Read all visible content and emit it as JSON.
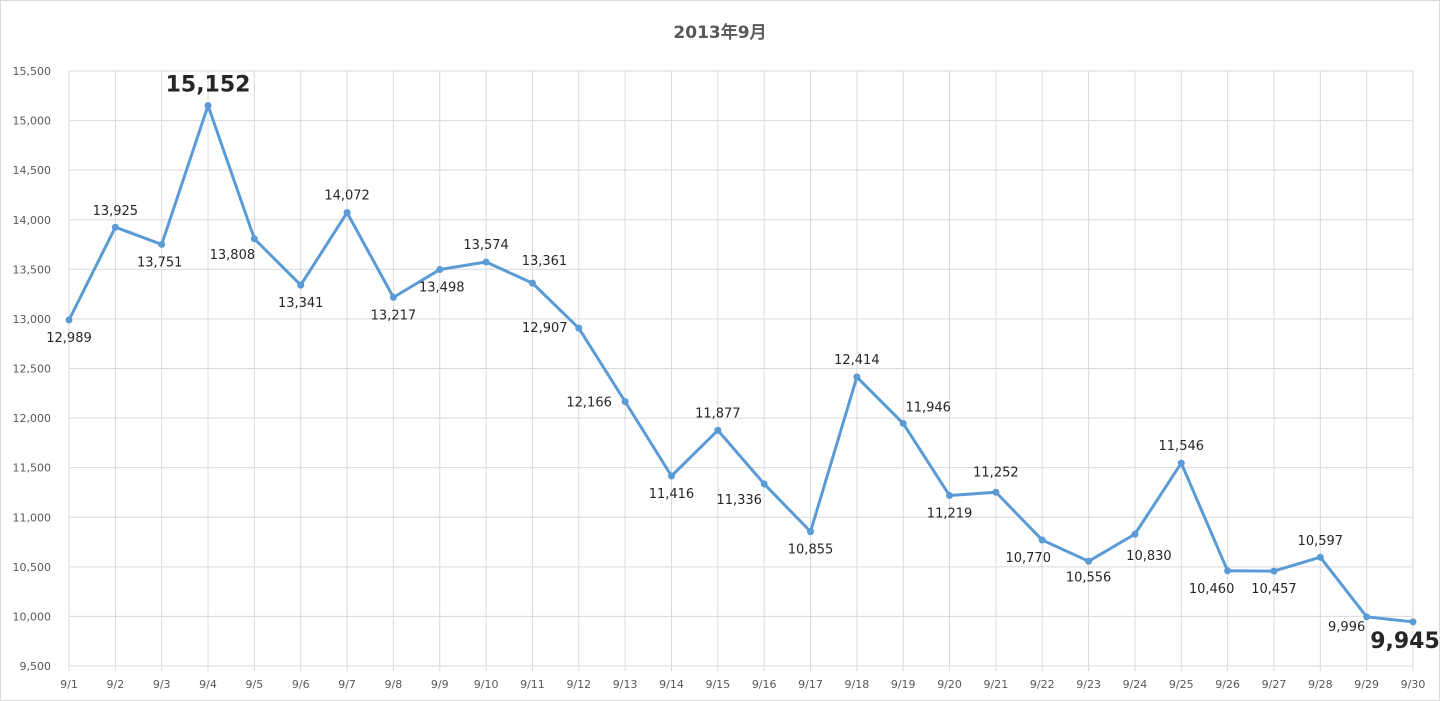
{
  "chart_data": {
    "type": "line",
    "title": "2013年9月",
    "xlabel": "",
    "ylabel": "",
    "ylim": [
      9500,
      15500
    ],
    "y_ticks": [
      "9,500",
      "10,000",
      "10,500",
      "11,000",
      "11,500",
      "12,000",
      "12,500",
      "13,000",
      "13,500",
      "14,000",
      "14,500",
      "15,000",
      "15,500"
    ],
    "grid": true,
    "legend": "none",
    "categories": [
      "9/1",
      "9/2",
      "9/3",
      "9/4",
      "9/5",
      "9/6",
      "9/7",
      "9/8",
      "9/9",
      "9/10",
      "9/11",
      "9/12",
      "9/13",
      "9/14",
      "9/15",
      "9/16",
      "9/17",
      "9/18",
      "9/19",
      "9/20",
      "9/21",
      "9/22",
      "9/23",
      "9/24",
      "9/25",
      "9/26",
      "9/27",
      "9/28",
      "9/29",
      "9/30"
    ],
    "series": [
      {
        "values": [
          12989,
          13925,
          13751,
          15152,
          13808,
          13341,
          14072,
          13217,
          13498,
          13574,
          13361,
          12907,
          12166,
          11416,
          11877,
          11336,
          10855,
          12414,
          11946,
          11219,
          11252,
          10770,
          10556,
          10830,
          11546,
          10460,
          10457,
          10597,
          9996,
          9945
        ],
        "data_labels": [
          "12,989",
          "13,925",
          "13,751",
          "15,152",
          "13,808",
          "13,341",
          "14,072",
          "13,217",
          "13,498",
          "13,574",
          "13,361",
          "12,907",
          "12,166",
          "11,416",
          "11,877",
          "11,336",
          "10,855",
          "12,414",
          "11,946",
          "11,219",
          "11,252",
          "10,770",
          "10,556",
          "10,830",
          "11,546",
          "10,460",
          "10,457",
          "10,597",
          "9,996",
          "9,945"
        ]
      }
    ],
    "colors": {
      "line": "#5b9bd5",
      "grid": "#d9d9d9",
      "axis_text": "#595959",
      "label_text": "#262626",
      "max_label": "#c00000",
      "min_label": "#7030a0"
    },
    "highlights": {
      "max_index": 3,
      "min_index": 29
    }
  }
}
